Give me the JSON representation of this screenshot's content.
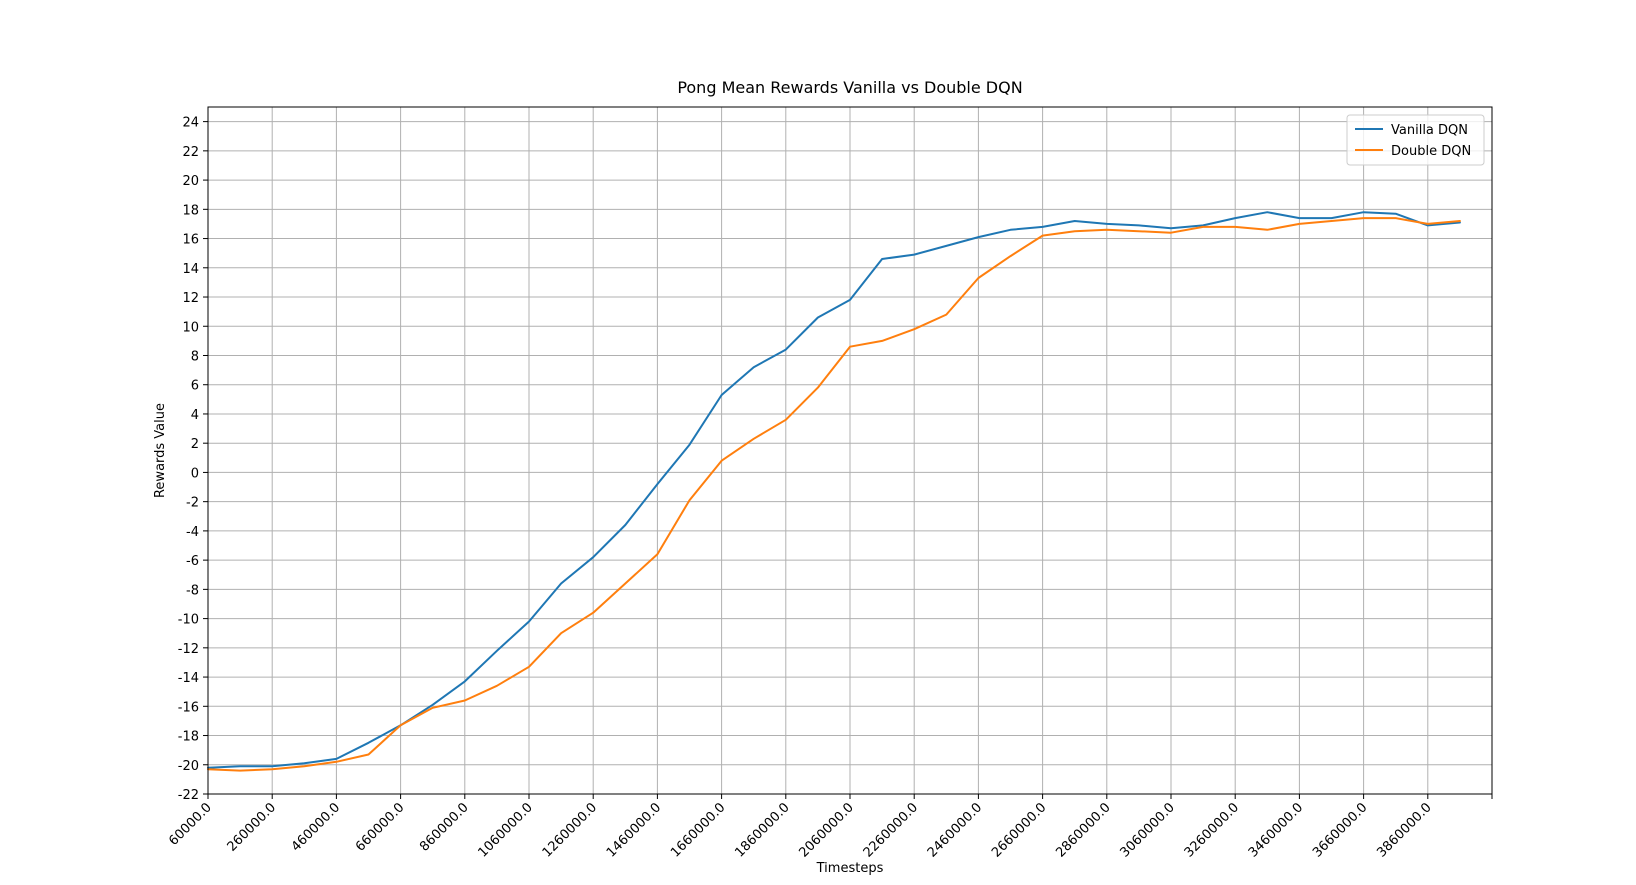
{
  "chart_data": {
    "type": "line",
    "title": "Pong Mean Rewards Vanilla vs Double DQN",
    "xlabel": "Timesteps",
    "ylabel": "Rewards Value",
    "xlim": [
      60000,
      4060000
    ],
    "ylim": [
      -22,
      25
    ],
    "x_ticks": [
      60000,
      260000,
      460000,
      660000,
      860000,
      1060000,
      1260000,
      1460000,
      1660000,
      1860000,
      2060000,
      2260000,
      2460000,
      2660000,
      2860000,
      3060000,
      3260000,
      3460000,
      3660000,
      3860000
    ],
    "x_tick_labels": [
      "60000.0",
      "260000.0",
      "460000.0",
      "660000.0",
      "860000.0",
      "1060000.0",
      "1260000.0",
      "1460000.0",
      "1660000.0",
      "1860000.0",
      "2060000.0",
      "2260000.0",
      "2460000.0",
      "2660000.0",
      "2860000.0",
      "3060000.0",
      "3260000.0",
      "3460000.0",
      "3660000.0",
      "3860000.0"
    ],
    "y_ticks": [
      -22,
      -20,
      -18,
      -16,
      -14,
      -12,
      -10,
      -8,
      -6,
      -4,
      -2,
      0,
      2,
      4,
      6,
      8,
      10,
      12,
      14,
      16,
      18,
      20,
      22,
      24
    ],
    "y_tick_labels": [
      "-22",
      "-20",
      "-18",
      "-16",
      "-14",
      "-12",
      "-10",
      "-8",
      "-6",
      "-4",
      "-2",
      "0",
      "2",
      "4",
      "6",
      "8",
      "10",
      "12",
      "14",
      "16",
      "18",
      "20",
      "22",
      "24"
    ],
    "grid": true,
    "legend_position": "top-right",
    "series": [
      {
        "name": "Vanilla DQN",
        "color": "#1f77b4",
        "x": [
          60000,
          160000,
          260000,
          360000,
          460000,
          560000,
          660000,
          760000,
          860000,
          960000,
          1060000,
          1160000,
          1260000,
          1360000,
          1460000,
          1560000,
          1660000,
          1760000,
          1860000,
          1960000,
          2060000,
          2160000,
          2260000,
          2360000,
          2460000,
          2560000,
          2660000,
          2760000,
          2860000,
          2960000,
          3060000,
          3160000,
          3260000,
          3360000,
          3460000,
          3560000,
          3660000,
          3760000,
          3860000,
          3960000
        ],
        "y": [
          -20.2,
          -20.1,
          -20.1,
          -19.9,
          -19.6,
          -18.5,
          -17.3,
          -15.9,
          -14.3,
          -12.2,
          -10.2,
          -7.6,
          -5.8,
          -3.6,
          -0.8,
          1.9,
          5.3,
          7.2,
          8.4,
          10.6,
          11.8,
          14.6,
          14.9,
          15.5,
          16.1,
          16.6,
          16.8,
          17.2,
          17.0,
          16.9,
          16.7,
          16.9,
          17.4,
          17.8,
          17.4,
          17.4,
          17.8,
          17.7,
          16.9,
          17.1
        ]
      },
      {
        "name": "Double DQN",
        "color": "#ff7f0e",
        "x": [
          60000,
          160000,
          260000,
          360000,
          460000,
          560000,
          660000,
          760000,
          860000,
          960000,
          1060000,
          1160000,
          1260000,
          1360000,
          1460000,
          1560000,
          1660000,
          1760000,
          1860000,
          1960000,
          2060000,
          2160000,
          2260000,
          2360000,
          2460000,
          2560000,
          2660000,
          2760000,
          2860000,
          3060000,
          3160000,
          3260000,
          3360000,
          3460000,
          3560000,
          3660000,
          3760000,
          3860000,
          3960000
        ],
        "y": [
          -20.3,
          -20.4,
          -20.3,
          -20.1,
          -19.8,
          -19.3,
          -17.3,
          -16.1,
          -15.6,
          -14.6,
          -13.3,
          -11.0,
          -9.6,
          -7.6,
          -5.6,
          -1.9,
          0.8,
          2.3,
          3.6,
          5.8,
          8.6,
          9.0,
          9.8,
          10.8,
          13.3,
          14.8,
          16.2,
          16.5,
          16.6,
          16.4,
          16.8,
          16.8,
          16.6,
          17.0,
          17.2,
          17.4,
          17.4,
          17.0,
          17.2
        ]
      }
    ]
  }
}
